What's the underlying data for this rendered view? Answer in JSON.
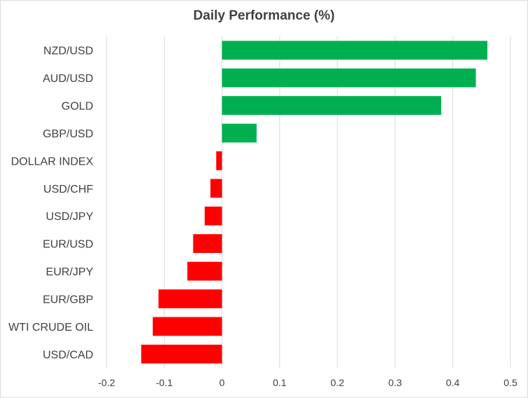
{
  "chart_data": {
    "type": "bar",
    "orientation": "horizontal",
    "title": "Daily Performance  (%)",
    "xlabel": "",
    "ylabel": "",
    "categories": [
      "NZD/USD",
      "AUD/USD",
      "GOLD",
      "GBP/USD",
      "DOLLAR INDEX",
      "USD/CHF",
      "USD/JPY",
      "EUR/USD",
      "EUR/JPY",
      "EUR/GBP",
      "WTI CRUDE OIL",
      "USD/CAD"
    ],
    "values": [
      0.46,
      0.44,
      0.38,
      0.06,
      -0.01,
      -0.02,
      -0.03,
      -0.05,
      -0.06,
      -0.11,
      -0.12,
      -0.14
    ],
    "xlim": [
      -0.2,
      0.5
    ],
    "xticks": [
      -0.2,
      -0.1,
      0,
      0.1,
      0.2,
      0.3,
      0.4,
      0.5
    ],
    "xtick_labels": [
      "-0.2",
      "-0.1",
      "0",
      "0.1",
      "0.2",
      "0.3",
      "0.4",
      "0.5"
    ],
    "grid": "vertical",
    "legend": "none",
    "colors": {
      "positive": "#00b050",
      "negative": "#ff0000",
      "grid": "#d9d9d9",
      "text": "#404040"
    }
  }
}
